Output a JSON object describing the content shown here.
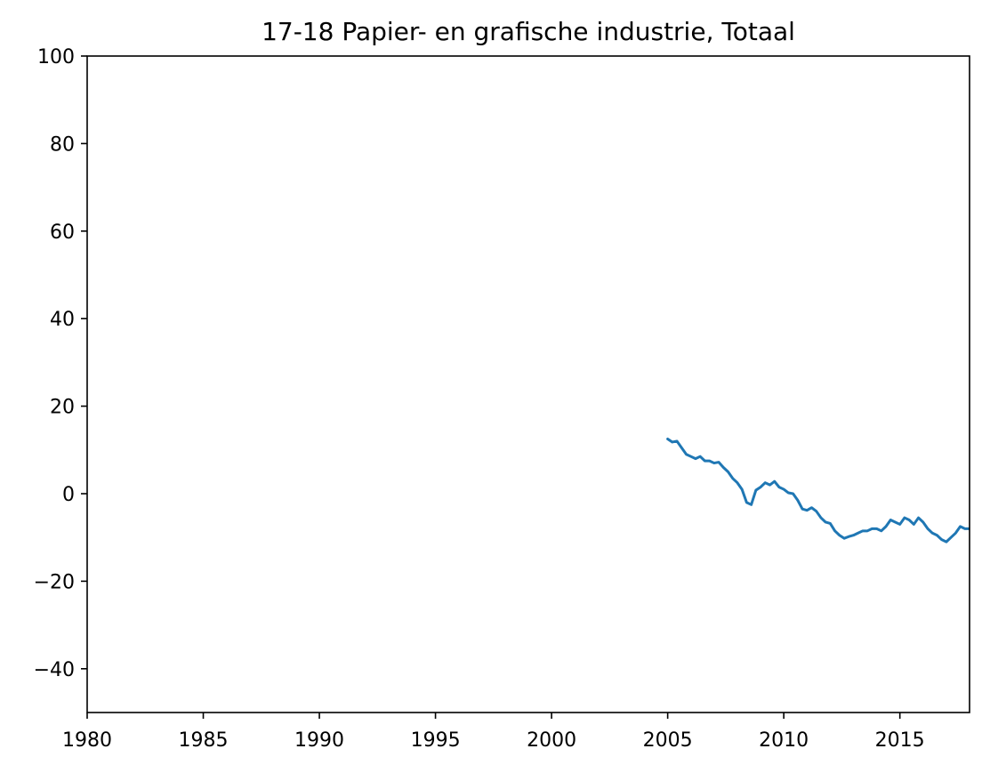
{
  "chart_data": {
    "type": "line",
    "title": "17-18 Papier- en grafische industrie, Totaal",
    "xlabel": "",
    "ylabel": "",
    "xlim": [
      1980,
      2018
    ],
    "ylim": [
      -50,
      100
    ],
    "grid": false,
    "x_ticks": [
      1980,
      1985,
      1990,
      1995,
      2000,
      2005,
      2010,
      2015
    ],
    "x_tick_labels": [
      "1980",
      "1985",
      "1990",
      "1995",
      "2000",
      "2005",
      "2010",
      "2015"
    ],
    "y_ticks": [
      -40,
      -20,
      0,
      20,
      40,
      60,
      80,
      100
    ],
    "y_tick_labels": [
      "−40",
      "−20",
      "0",
      "20",
      "40",
      "60",
      "80",
      "100"
    ],
    "series": [
      {
        "color": "#1f77b4",
        "x": [
          2005.0,
          2005.2,
          2005.4,
          2005.6,
          2005.8,
          2006.0,
          2006.2,
          2006.4,
          2006.6,
          2006.8,
          2007.0,
          2007.2,
          2007.4,
          2007.6,
          2007.8,
          2008.0,
          2008.2,
          2008.4,
          2008.6,
          2008.8,
          2009.0,
          2009.2,
          2009.4,
          2009.6,
          2009.8,
          2010.0,
          2010.2,
          2010.4,
          2010.6,
          2010.8,
          2011.0,
          2011.2,
          2011.4,
          2011.6,
          2011.8,
          2012.0,
          2012.2,
          2012.4,
          2012.6,
          2012.8,
          2013.0,
          2013.2,
          2013.4,
          2013.6,
          2013.8,
          2014.0,
          2014.2,
          2014.4,
          2014.6,
          2014.8,
          2015.0,
          2015.2,
          2015.4,
          2015.6,
          2015.8,
          2016.0,
          2016.2,
          2016.4,
          2016.6,
          2016.8,
          2017.0,
          2017.2,
          2017.4,
          2017.6,
          2017.8,
          2018.0
        ],
        "y": [
          12.5,
          11.8,
          12.0,
          10.5,
          9.0,
          8.5,
          8.0,
          8.5,
          7.5,
          7.5,
          7.0,
          7.2,
          6.0,
          5.0,
          3.5,
          2.5,
          1.0,
          -2.0,
          -2.5,
          0.8,
          1.5,
          2.5,
          2.0,
          2.8,
          1.5,
          1.0,
          0.2,
          0.0,
          -1.5,
          -3.5,
          -3.8,
          -3.2,
          -4.0,
          -5.5,
          -6.5,
          -6.8,
          -8.5,
          -9.5,
          -10.2,
          -9.8,
          -9.5,
          -9.0,
          -8.5,
          -8.5,
          -8.0,
          -8.0,
          -8.5,
          -7.5,
          -6.0,
          -6.5,
          -7.0,
          -5.5,
          -6.0,
          -7.0,
          -5.5,
          -6.5,
          -8.0,
          -9.0,
          -9.5,
          -10.5,
          -11.0,
          -10.0,
          -9.0,
          -7.5,
          -8.0,
          -8.0
        ]
      }
    ]
  }
}
